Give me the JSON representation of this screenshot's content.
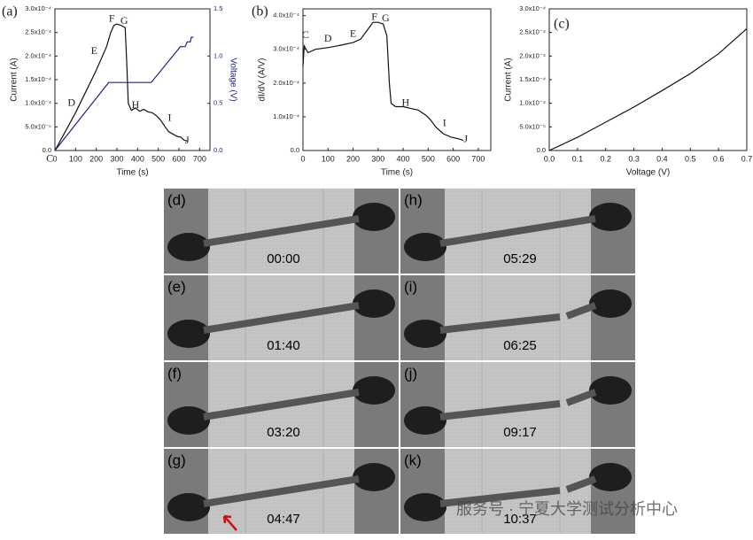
{
  "chart_data": [
    {
      "type": "line",
      "panel_label": "(a)",
      "xlabel": "Time (s)",
      "ylabel": "Current (A)",
      "y2label": "Voltage (V)",
      "xlim": [
        0,
        750
      ],
      "xticks": [
        0,
        100,
        200,
        300,
        400,
        500,
        600,
        700
      ],
      "ylim": [
        0,
        0.0003
      ],
      "yticks": [
        {
          "value": 0,
          "label": "0.0"
        },
        {
          "value": 5e-05,
          "label": "5.0x10⁻⁵"
        },
        {
          "value": 0.0001,
          "label": "1.0x10⁻⁴"
        },
        {
          "value": 0.00015,
          "label": "1.5x10⁻⁴"
        },
        {
          "value": 0.0002,
          "label": "2.0x10⁻⁴"
        },
        {
          "value": 0.00025,
          "label": "2.5x10⁻⁴"
        },
        {
          "value": 0.0003,
          "label": "3.0x10⁻⁴"
        }
      ],
      "y2lim": [
        0,
        1.5
      ],
      "y2ticks": [
        {
          "value": 0,
          "label": "0.0"
        },
        {
          "value": 0.5,
          "label": "0.5"
        },
        {
          "value": 1,
          "label": "1.0"
        },
        {
          "value": 1.5,
          "label": "1.5"
        }
      ],
      "series": [
        {
          "color": "#111111",
          "x": [
            0,
            50,
            100,
            150,
            200,
            250,
            270,
            285,
            300,
            320,
            340,
            348,
            355,
            370,
            390,
            410,
            430,
            450,
            470,
            490,
            510,
            530,
            550,
            570,
            590,
            610,
            625,
            640
          ],
          "values": [
            0,
            4e-05,
            8e-05,
            0.000125,
            0.00017,
            0.00022,
            0.00025,
            0.000265,
            0.000268,
            0.000265,
            0.00026,
            0.00018,
            0.0001,
            8.5e-05,
            9e-05,
            8.3e-05,
            8.7e-05,
            8.2e-05,
            8e-05,
            7.4e-05,
            6.5e-05,
            5.2e-05,
            4e-05,
            3.5e-05,
            3e-05,
            2.8e-05,
            2.2e-05,
            2e-05
          ]
        },
        {
          "color": "#1f1f8f",
          "axis": "y2",
          "x": [
            0,
            260,
            466,
            607,
            612,
            630,
            640,
            655,
            660,
            670
          ],
          "values": [
            0,
            0.72,
            0.72,
            1.1,
            1.1,
            1.1,
            1.15,
            1.15,
            1.2,
            1.2
          ]
        }
      ],
      "annotations": [
        {
          "text": "C",
          "x": -25,
          "y": -1.8e-05
        },
        {
          "text": "D",
          "x": 80,
          "y": 0.0001
        },
        {
          "text": "E",
          "x": 190,
          "y": 0.00021
        },
        {
          "text": "F",
          "x": 275,
          "y": 0.000278
        },
        {
          "text": "G",
          "x": 335,
          "y": 0.000273
        },
        {
          "text": "H",
          "x": 390,
          "y": 9.5e-05
        },
        {
          "text": "I",
          "x": 555,
          "y": 6.8e-05
        },
        {
          "text": "J",
          "x": 640,
          "y": 2e-05
        }
      ]
    },
    {
      "type": "line",
      "panel_label": "(b)",
      "xlabel": "Time (s)",
      "ylabel": "dI/dV (A/V)",
      "xlim": [
        0,
        750
      ],
      "xticks": [
        0,
        100,
        200,
        300,
        400,
        500,
        600,
        700
      ],
      "ylim": [
        0,
        0.00042
      ],
      "yticks": [
        {
          "value": 0,
          "label": "0.0"
        },
        {
          "value": 0.0001,
          "label": "1.0x10⁻⁴"
        },
        {
          "value": 0.0002,
          "label": "2.0x10⁻⁴"
        },
        {
          "value": 0.0003,
          "label": "3.0x10⁻⁴"
        },
        {
          "value": 0.0004,
          "label": "4.0x10⁻⁴"
        }
      ],
      "series": [
        {
          "color": "#111111",
          "x": [
            0,
            5,
            20,
            50,
            100,
            150,
            200,
            230,
            260,
            280,
            300,
            320,
            335,
            345,
            352,
            370,
            400,
            430,
            460,
            490,
            510,
            530,
            560,
            590,
            620,
            640
          ],
          "values": [
            0.00025,
            0.00031,
            0.00029,
            0.0003,
            0.000305,
            0.000312,
            0.00032,
            0.00033,
            0.00036,
            0.00038,
            0.00038,
            0.000375,
            0.00034,
            0.0002,
            0.00014,
            0.00013,
            0.00013,
            0.000125,
            0.00012,
            0.000105,
            9e-05,
            7e-05,
            5e-05,
            4e-05,
            3.5e-05,
            3e-05
          ]
        }
      ],
      "annotations": [
        {
          "text": "C",
          "x": 10,
          "y": 0.00034
        },
        {
          "text": "D",
          "x": 100,
          "y": 0.00033
        },
        {
          "text": "E",
          "x": 200,
          "y": 0.000345
        },
        {
          "text": "F",
          "x": 285,
          "y": 0.000395
        },
        {
          "text": "G",
          "x": 330,
          "y": 0.00039
        },
        {
          "text": "H",
          "x": 410,
          "y": 0.00014
        },
        {
          "text": "I",
          "x": 565,
          "y": 8e-05
        },
        {
          "text": "J",
          "x": 650,
          "y": 3.2e-05
        }
      ]
    },
    {
      "type": "line",
      "panel_label": "(c)",
      "xlabel": "Voltage (V)",
      "ylabel": "Current (A)",
      "xlim": [
        0,
        0.7
      ],
      "xticks": [
        {
          "value": 0,
          "label": "0.0"
        },
        0.1,
        0.2,
        0.3,
        0.4,
        0.5,
        0.6,
        0.7
      ],
      "ylim": [
        0,
        0.0003
      ],
      "yticks": [
        {
          "value": 0,
          "label": "0.0"
        },
        {
          "value": 5e-05,
          "label": "5.0x10⁻⁵"
        },
        {
          "value": 0.0001,
          "label": "1.0x10⁻⁴"
        },
        {
          "value": 0.00015,
          "label": "1.5x10⁻⁴"
        },
        {
          "value": 0.0002,
          "label": "2.0x10⁻⁴"
        },
        {
          "value": 0.00025,
          "label": "2.5x10⁻⁴"
        },
        {
          "value": 0.0003,
          "label": "3.0x10⁻⁴"
        }
      ],
      "series": [
        {
          "color": "#111111",
          "x": [
            0,
            0.1,
            0.2,
            0.3,
            0.4,
            0.5,
            0.6,
            0.7
          ],
          "values": [
            0,
            2.8e-05,
            6e-05,
            9.2e-05,
            0.000127,
            0.000163,
            0.000205,
            0.000258
          ]
        }
      ],
      "annotations": []
    }
  ],
  "panels": [
    {
      "label": "(d)",
      "time": "00:00"
    },
    {
      "label": "(e)",
      "time": "01:40"
    },
    {
      "label": "(f)",
      "time": "03:20"
    },
    {
      "label": "(g)",
      "time": "04:47"
    },
    {
      "label": "(h)",
      "time": "05:29"
    },
    {
      "label": "(i)",
      "time": "06:25"
    },
    {
      "label": "(j)",
      "time": "09:17"
    },
    {
      "label": "(k)",
      "time": "10:37"
    }
  ],
  "watermark": "服务号 · 宁夏大学测试分析中心"
}
